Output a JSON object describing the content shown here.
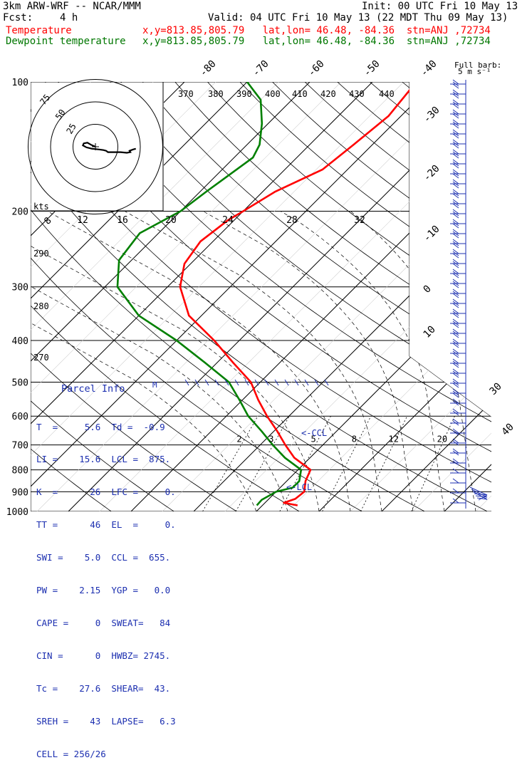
{
  "header": {
    "model": "3km ARW-WRF -- NCAR/MMM",
    "init": "Init: 00 UTC Fri 10 May 13",
    "fcst_label": "Fcst:",
    "fcst_value": "4 h",
    "valid": "Valid: 04 UTC Fri 10 May 13 (22 MDT Thu 09 May 13)",
    "temp_label": "Temperature",
    "dew_label": "Dewpoint temperature",
    "location": "x,y=813.85,805.79   lat,lon= 46.48, -84.36  stn=ANJ ,72734"
  },
  "colors": {
    "temperature": "#ff0000",
    "dewpoint": "#008000",
    "barbs": "#1c2fb0",
    "grid": "#000000"
  },
  "chart_data": {
    "type": "line",
    "ylim": [
      1000,
      100
    ],
    "y_scale": "log",
    "ylabel": "",
    "pressure_ticks": [
      100,
      200,
      300,
      400,
      500,
      600,
      700,
      800,
      900,
      1000
    ],
    "temperature_ticks": [
      -80,
      -70,
      -60,
      -50,
      -40,
      -30,
      -20,
      -10,
      0,
      10,
      30,
      40
    ],
    "isentrope_labels": [
      370,
      380,
      390,
      400,
      410,
      420,
      430,
      440,
      290,
      280,
      270
    ],
    "mixing_ratio_labels": [
      "2",
      "3",
      "5",
      "8",
      "12",
      "20"
    ],
    "series": [
      {
        "name": "Temperature",
        "pressure": [
          968,
          955,
          935,
          900,
          850,
          800,
          750,
          700,
          650,
          600,
          550,
          500,
          450,
          400,
          350,
          300,
          265,
          235,
          210,
          200,
          180,
          160,
          140,
          120,
          100
        ],
        "temp": [
          5.6,
          3.0,
          4.2,
          4.5,
          3.0,
          2.0,
          -2.5,
          -6.0,
          -9.5,
          -13.5,
          -17.5,
          -21.5,
          -27.5,
          -34.0,
          -42.0,
          -48.0,
          -51.0,
          -52.0,
          -51.0,
          -50.0,
          -48.0,
          -44.0,
          -43.0,
          -42.0,
          -43.0
        ]
      },
      {
        "name": "Dewpoint temperature",
        "pressure": [
          968,
          940,
          900,
          880,
          850,
          800,
          750,
          700,
          650,
          600,
          550,
          500,
          450,
          400,
          350,
          300,
          260,
          225,
          200,
          180,
          150,
          140,
          125,
          110,
          100
        ],
        "temp": [
          -0.9,
          -1.0,
          0.0,
          2.0,
          2.0,
          0.5,
          -4.0,
          -8.0,
          -12.0,
          -16.5,
          -20.5,
          -25.0,
          -32.0,
          -40.0,
          -50.0,
          -58.0,
          -62.0,
          -63.0,
          -60.0,
          -59.0,
          -57.0,
          -58.0,
          -61.0,
          -65.0,
          -70.0
        ]
      }
    ],
    "hodograph": {
      "rings": [
        "25",
        "50",
        "75"
      ],
      "units_label": "kts",
      "speed_ticks": [
        "8",
        "12",
        "16",
        "20",
        "24",
        "28",
        "32"
      ],
      "trace_kts": [
        [
          0,
          0
        ],
        [
          -5,
          -3
        ],
        [
          -9,
          -6
        ],
        [
          -13,
          -5
        ],
        [
          -14,
          -2
        ],
        [
          -10,
          1
        ],
        [
          -4,
          3
        ],
        [
          4,
          4
        ],
        [
          9,
          5
        ],
        [
          12,
          6
        ],
        [
          14,
          8
        ],
        [
          20,
          8
        ],
        [
          28,
          8
        ],
        [
          35,
          9
        ],
        [
          39,
          8
        ],
        [
          38,
          6
        ],
        [
          42,
          4
        ],
        [
          45,
          3
        ]
      ]
    },
    "wind_barb_legend": {
      "title": "Full barb:",
      "value": "5 m s⁻¹"
    }
  },
  "parcel": {
    "title": "Parcel Info",
    "rows": [
      "T  =     5.6  Td =  -0.9",
      "LI =    15.6  LCL =  875.",
      "K  =      26  LFC =     0.",
      "TT =      46  EL  =     0.",
      "SWI =    5.0  CCL =  655.",
      "PW =    2.15  YGP =   0.0",
      "CAPE =     0  SWEAT=   84",
      "CIN =      0  HWBZ= 2745.",
      "Tc =    27.6  SHEAR=  43.",
      "SREH =    43  LAPSE=   6.3",
      "CELL = 256/26"
    ]
  },
  "annotations": {
    "ccl": "CCL",
    "lcl": "LCL"
  }
}
